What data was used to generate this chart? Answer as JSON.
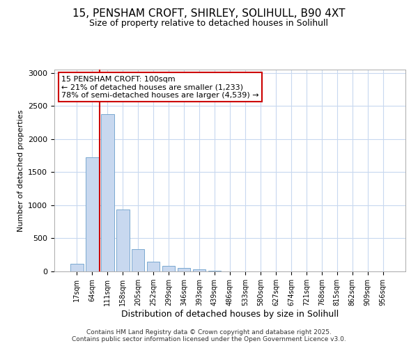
{
  "title_line1": "15, PENSHAM CROFT, SHIRLEY, SOLIHULL, B90 4XT",
  "title_line2": "Size of property relative to detached houses in Solihull",
  "xlabel": "Distribution of detached houses by size in Solihull",
  "ylabel": "Number of detached properties",
  "footer_line1": "Contains HM Land Registry data © Crown copyright and database right 2025.",
  "footer_line2": "Contains public sector information licensed under the Open Government Licence v3.0.",
  "categories": [
    "17sqm",
    "64sqm",
    "111sqm",
    "158sqm",
    "205sqm",
    "252sqm",
    "299sqm",
    "346sqm",
    "393sqm",
    "439sqm",
    "486sqm",
    "533sqm",
    "580sqm",
    "627sqm",
    "674sqm",
    "721sqm",
    "768sqm",
    "815sqm",
    "862sqm",
    "909sqm",
    "956sqm"
  ],
  "values": [
    120,
    1730,
    2380,
    940,
    335,
    150,
    80,
    50,
    30,
    10,
    5,
    3,
    2,
    0,
    0,
    0,
    0,
    0,
    0,
    0,
    0
  ],
  "bar_color": "#c8d8ef",
  "bar_edge_color": "#7aa8d0",
  "grid_color": "#c8d8ef",
  "background_color": "#ffffff",
  "vline_color": "#cc0000",
  "vline_x_index": 1.5,
  "annotation_text": "15 PENSHAM CROFT: 100sqm\n← 21% of detached houses are smaller (1,233)\n78% of semi-detached houses are larger (4,539) →",
  "annotation_box_edgecolor": "#cc0000",
  "annotation_box_facecolor": "#ffffff",
  "ylim": [
    0,
    3050
  ],
  "yticks": [
    0,
    500,
    1000,
    1500,
    2000,
    2500,
    3000
  ],
  "title_fontsize": 11,
  "subtitle_fontsize": 9,
  "xlabel_fontsize": 9,
  "ylabel_fontsize": 8,
  "tick_fontsize": 8,
  "xtick_fontsize": 7,
  "footer_fontsize": 6.5,
  "ann_fontsize": 8
}
